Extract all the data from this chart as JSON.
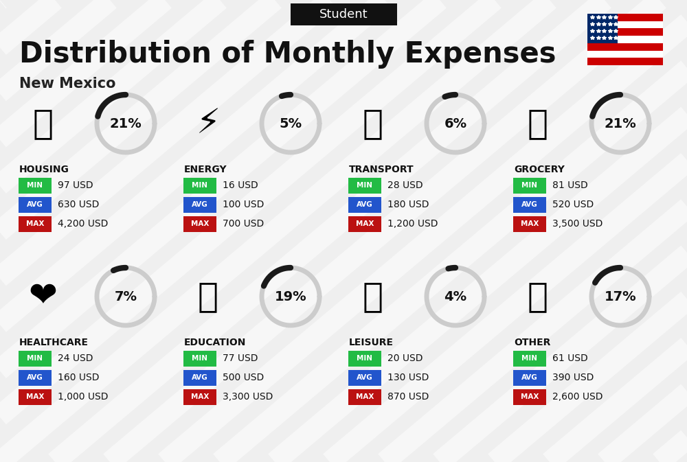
{
  "title": "Distribution of Monthly Expenses",
  "subtitle": "Student",
  "location": "New Mexico",
  "background_color": "#efefef",
  "categories": [
    {
      "name": "HOUSING",
      "pct": 21,
      "min": "97 USD",
      "avg": "630 USD",
      "max": "4,200 USD",
      "col": 0,
      "row": 0,
      "emoji": "🏢"
    },
    {
      "name": "ENERGY",
      "pct": 5,
      "min": "16 USD",
      "avg": "100 USD",
      "max": "700 USD",
      "col": 1,
      "row": 0,
      "emoji": "⚡"
    },
    {
      "name": "TRANSPORT",
      "pct": 6,
      "min": "28 USD",
      "avg": "180 USD",
      "max": "1,200 USD",
      "col": 2,
      "row": 0,
      "emoji": "🚌"
    },
    {
      "name": "GROCERY",
      "pct": 21,
      "min": "81 USD",
      "avg": "520 USD",
      "max": "3,500 USD",
      "col": 3,
      "row": 0,
      "emoji": "🛒"
    },
    {
      "name": "HEALTHCARE",
      "pct": 7,
      "min": "24 USD",
      "avg": "160 USD",
      "max": "1,000 USD",
      "col": 0,
      "row": 1,
      "emoji": "❤️"
    },
    {
      "name": "EDUCATION",
      "pct": 19,
      "min": "77 USD",
      "avg": "500 USD",
      "max": "3,300 USD",
      "col": 1,
      "row": 1,
      "emoji": "🎓"
    },
    {
      "name": "LEISURE",
      "pct": 4,
      "min": "20 USD",
      "avg": "130 USD",
      "max": "870 USD",
      "col": 2,
      "row": 1,
      "emoji": "🛍"
    },
    {
      "name": "OTHER",
      "pct": 17,
      "min": "61 USD",
      "avg": "390 USD",
      "max": "2,600 USD",
      "col": 3,
      "row": 1,
      "emoji": "👜"
    }
  ],
  "color_min": "#22bb44",
  "color_avg": "#2255cc",
  "color_max": "#bb1111",
  "donut_color_filled": "#1a1a1a",
  "donut_color_empty": "#cccccc",
  "fig_width": 10.0,
  "fig_height": 6.73,
  "dpi": 100
}
